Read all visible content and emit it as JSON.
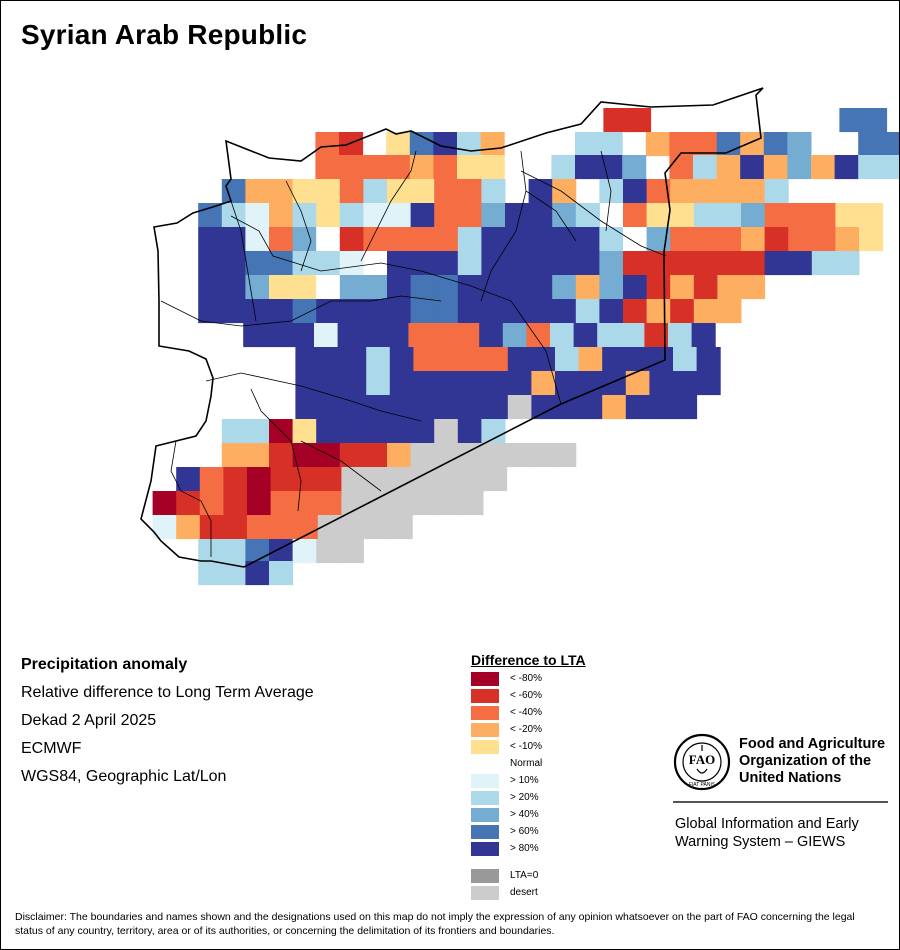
{
  "map": {
    "title": "Syrian Arab Republic",
    "grid_columns": "ABCDEFGHIJKLMNOPQRSTUVWXYZab",
    "grid_rows_top": [
      "PPP",
      "PPPP",
      "QQP",
      "PPP",
      "QQQ",
      "QQQ",
      "RRRR",
      "RRR",
      "RRRR",
      "RRR",
      "RRRRR",
      "RRR",
      "RRRR",
      "RRRR",
      "RRRR",
      "RRRRR",
      "RRRR",
      "RRRR",
      "RRRRR",
      "SSSSSSSS",
      "SSSSSSS",
      "SSSSSSS",
      "SSSS",
      "SSSSSS",
      "SSSSSSSS",
      "SSSSSS",
      "SSSSSS"
    ],
    "grid": [
      "..........................N.",
      "........................CCED",
      "..................J.EEDD.DDD",
      ".......%%........KJ.DEEJ..JD",
      "....%%....DD.....%%JK.CJDD..",
      "....%.HHH.%%...KK%JK.JEEEJ..",
      "....H..KK.JKJ%%KK%JKJ.%.%..Q",
      ".........JJ.KK%..%.JKKDHD.J.",
      "...DD.H..J%%.J..D....J%%%..."
    ]
  },
  "info": {
    "title": "Precipitation anomaly",
    "line1": "Relative difference to Long Term Average",
    "line2": "Dekad 2 April 2025",
    "line3": "ECMWF",
    "line4": "WGS84, Geographic Lat/Lon"
  },
  "legend": {
    "title": "Difference to LTA",
    "items": [
      {
        "label": "< -80%",
        "color": "#a50026"
      },
      {
        "label": "< -60%",
        "color": "#d73027"
      },
      {
        "label": "< -40%",
        "color": "#f46d43"
      },
      {
        "label": "< -20%",
        "color": "#fdae61"
      },
      {
        "label": "< -10%",
        "color": "#fee090"
      },
      {
        "label": "Normal",
        "color": "#ffffff"
      },
      {
        "label": "> 10%",
        "color": "#e0f3f8"
      },
      {
        "label": "> 20%",
        "color": "#abd9e9"
      },
      {
        "label": "> 40%",
        "color": "#74add1"
      },
      {
        "label": "> 60%",
        "color": "#4575b4"
      },
      {
        "label": "> 80%",
        "color": "#313695"
      },
      {
        "label": "LTA=0",
        "color": "#999999"
      },
      {
        "label": "desert",
        "color": "#cccccc"
      }
    ]
  },
  "fao": {
    "name": "Food and Agriculture Organization of the United Nations",
    "emblem_text": "FAO",
    "motto": "FIAT PANIS",
    "system": "Global Information and Early Warning System – GIEWS"
  },
  "disclaimer": "Disclaimer: The boundaries and names shown and the designations used on this map do not imply the expression of any opinion whatsoever on the part of FAO concerning the legal status of any country, territory, area or of its authorities, or concerning the delimitation of its frontiers and boundaries."
}
